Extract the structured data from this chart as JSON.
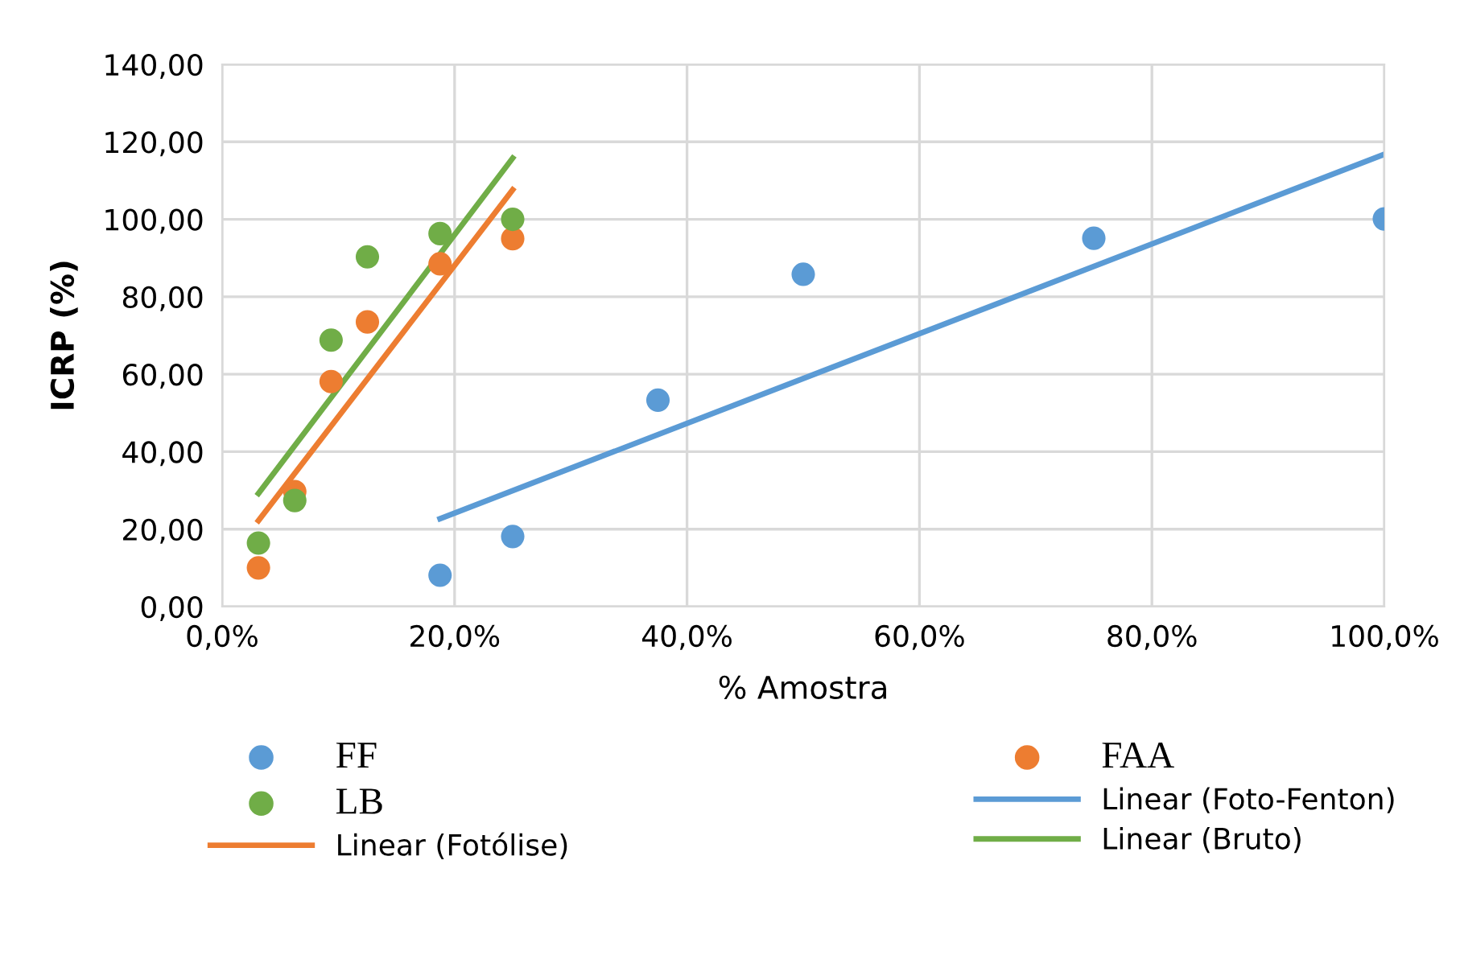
{
  "chart_data": {
    "type": "scatter",
    "xlabel": "% Amostra",
    "ylabel": "ICRP (%)",
    "xlim": [
      0,
      100
    ],
    "ylim": [
      0,
      140
    ],
    "xticks": [
      {
        "value": 0,
        "label": "0,0%"
      },
      {
        "value": 20,
        "label": "20,0%"
      },
      {
        "value": 40,
        "label": "40,0%"
      },
      {
        "value": 60,
        "label": "60,0%"
      },
      {
        "value": 80,
        "label": "80,0%"
      },
      {
        "value": 100,
        "label": "100,0%"
      }
    ],
    "yticks": [
      {
        "value": 0,
        "label": "0,00"
      },
      {
        "value": 20,
        "label": "20,00"
      },
      {
        "value": 40,
        "label": "40,00"
      },
      {
        "value": 60,
        "label": "60,00"
      },
      {
        "value": 80,
        "label": "80,00"
      },
      {
        "value": 100,
        "label": "100,00"
      },
      {
        "value": 120,
        "label": "120,00"
      },
      {
        "value": 140,
        "label": "140,00"
      }
    ],
    "grid": true,
    "legend": "bottom",
    "series": [
      {
        "name": "FF",
        "marker": "circle",
        "color": "#5b9bd5",
        "x": [
          18.75,
          25,
          37.5,
          50,
          75,
          100
        ],
        "values": [
          8.1,
          18.1,
          53.3,
          85.8,
          95.1,
          100.1
        ]
      },
      {
        "name": "FAA",
        "marker": "circle",
        "color": "#ed7d31",
        "x": [
          3.125,
          6.25,
          9.375,
          12.5,
          18.75,
          25
        ],
        "values": [
          10.0,
          29.7,
          58.1,
          73.5,
          88.5,
          95.0
        ]
      },
      {
        "name": "LB",
        "marker": "circle",
        "color": "#70ad47",
        "x": [
          3.125,
          6.25,
          9.375,
          12.5,
          18.75,
          25
        ],
        "values": [
          16.4,
          27.4,
          68.8,
          90.3,
          96.3,
          100.0
        ]
      },
      {
        "name": "Linear (Foto-Fenton)",
        "type": "line",
        "color": "#5b9bd5",
        "x": [
          18.75,
          100
        ],
        "values": [
          22.7,
          116.8
        ]
      },
      {
        "name": "Linear (Fotólise)",
        "type": "line",
        "color": "#ed7d31",
        "x": [
          3.125,
          25
        ],
        "values": [
          22.2,
          107.6
        ]
      },
      {
        "name": "Linear (Bruto)",
        "type": "line",
        "color": "#70ad47",
        "x": [
          3.125,
          25
        ],
        "values": [
          29.2,
          115.8
        ]
      }
    ]
  }
}
